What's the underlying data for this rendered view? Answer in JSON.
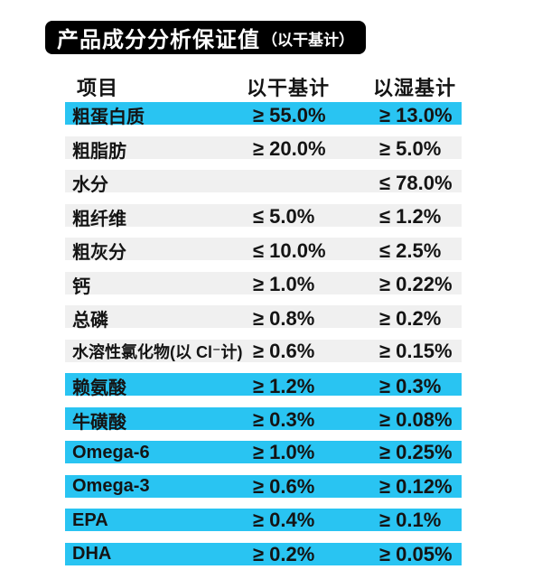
{
  "title": {
    "main": "产品成分分析保证值",
    "sub": "（以干基计）",
    "bg": "#000000",
    "fg": "#ffffff"
  },
  "table": {
    "headers": {
      "item": "项目",
      "dry": "以干基计",
      "wet": "以湿基计"
    },
    "colors": {
      "highlight": "#29C4F2",
      "normal": "#F0F0F0",
      "text": "#141414"
    },
    "rows": [
      {
        "item": "粗蛋白质",
        "dry": "≥ 55.0%",
        "wet": "≥ 13.0%",
        "highlight": true
      },
      {
        "item": "粗脂肪",
        "dry": "≥ 20.0%",
        "wet": "≥ 5.0%",
        "highlight": false
      },
      {
        "item": "水分",
        "dry": "",
        "wet": "≤ 78.0%",
        "highlight": false
      },
      {
        "item": "粗纤维",
        "dry": "≤ 5.0%",
        "wet": "≤ 1.2%",
        "highlight": false
      },
      {
        "item": "粗灰分",
        "dry": "≤ 10.0%",
        "wet": "≤ 2.5%",
        "highlight": false
      },
      {
        "item": "钙",
        "dry": "≥ 1.0%",
        "wet": "≥ 0.22%",
        "highlight": false
      },
      {
        "item": "总磷",
        "dry": "≥ 0.8%",
        "wet": "≥ 0.2%",
        "highlight": false
      },
      {
        "item": "水溶性氯化物(以 Cl⁻计)",
        "dry": "≥ 0.6%",
        "wet": "≥ 0.15%",
        "highlight": false
      },
      {
        "item": "赖氨酸",
        "dry": "≥ 1.2%",
        "wet": "≥ 0.3%",
        "highlight": true
      },
      {
        "item": "牛磺酸",
        "dry": "≥ 0.3%",
        "wet": "≥ 0.08%",
        "highlight": true
      },
      {
        "item": "Omega-6",
        "dry": "≥ 1.0%",
        "wet": "≥ 0.25%",
        "highlight": true
      },
      {
        "item": "Omega-3",
        "dry": "≥ 0.6%",
        "wet": "≥ 0.12%",
        "highlight": true
      },
      {
        "item": "EPA",
        "dry": "≥ 0.4%",
        "wet": "≥ 0.1%",
        "highlight": true
      },
      {
        "item": "DHA",
        "dry": "≥ 0.2%",
        "wet": "≥ 0.05%",
        "highlight": true
      }
    ]
  }
}
